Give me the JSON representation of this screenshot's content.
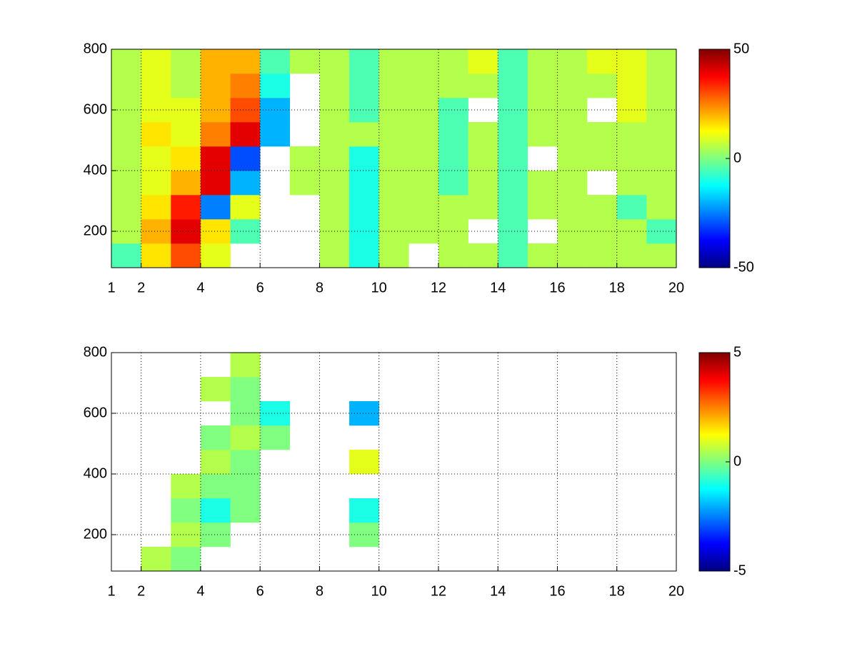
{
  "chart_data": [
    {
      "type": "heatmap",
      "colormap": "jet",
      "grid": true,
      "x_edges": [
        1,
        2,
        3,
        4,
        5,
        6,
        7,
        8,
        9,
        10,
        11,
        12,
        13,
        14,
        15,
        16,
        17,
        18,
        19,
        20
      ],
      "y_edges": [
        80,
        160,
        240,
        320,
        400,
        480,
        560,
        640,
        720,
        800
      ],
      "z": [
        [
          -5,
          15,
          30,
          10,
          null,
          null,
          null,
          5,
          -10,
          5,
          null,
          5,
          5,
          -5,
          5,
          5,
          5,
          5,
          5
        ],
        [
          5,
          20,
          40,
          15,
          -5,
          null,
          null,
          5,
          -10,
          5,
          5,
          5,
          null,
          -5,
          null,
          5,
          5,
          5,
          -5
        ],
        [
          5,
          15,
          35,
          -25,
          10,
          null,
          null,
          5,
          -10,
          5,
          5,
          5,
          5,
          -5,
          5,
          5,
          5,
          -5,
          5
        ],
        [
          5,
          10,
          20,
          40,
          -20,
          null,
          5,
          5,
          -10,
          5,
          5,
          -5,
          5,
          -5,
          5,
          5,
          null,
          5,
          5
        ],
        [
          5,
          10,
          15,
          40,
          -30,
          null,
          5,
          5,
          -10,
          5,
          5,
          -5,
          5,
          -5,
          null,
          5,
          5,
          5,
          5
        ],
        [
          5,
          15,
          10,
          25,
          40,
          -20,
          null,
          5,
          5,
          5,
          5,
          -5,
          5,
          -5,
          5,
          5,
          5,
          5,
          5
        ],
        [
          5,
          10,
          10,
          20,
          30,
          -20,
          null,
          5,
          -5,
          5,
          5,
          -5,
          null,
          -5,
          5,
          5,
          null,
          10,
          5
        ],
        [
          5,
          10,
          5,
          20,
          25,
          -10,
          null,
          5,
          -5,
          5,
          5,
          5,
          5,
          -5,
          5,
          5,
          5,
          10,
          5
        ],
        [
          5,
          10,
          5,
          20,
          20,
          -5,
          5,
          5,
          -5,
          5,
          5,
          5,
          10,
          -5,
          5,
          5,
          10,
          10,
          5
        ]
      ],
      "xlim": [
        1,
        20
      ],
      "ylim": [
        80,
        800
      ],
      "xticks": [
        1,
        2,
        4,
        6,
        8,
        10,
        12,
        14,
        16,
        18,
        20
      ],
      "yticks": [
        200,
        400,
        600,
        800
      ],
      "clim": [
        -50,
        50
      ],
      "cticks": [
        -50,
        0,
        50
      ]
    },
    {
      "type": "heatmap",
      "colormap": "jet",
      "grid": true,
      "x_edges": [
        1,
        2,
        3,
        4,
        5,
        6,
        7,
        8,
        9,
        10,
        11,
        12,
        13,
        14,
        15,
        16,
        17,
        18,
        19,
        20
      ],
      "y_edges": [
        80,
        160,
        240,
        320,
        400,
        480,
        560,
        640,
        720,
        800
      ],
      "z": [
        [
          null,
          0.5,
          0,
          null,
          null,
          null,
          null,
          null,
          null,
          null,
          null,
          null,
          null,
          null,
          null,
          null,
          null,
          null,
          null
        ],
        [
          null,
          null,
          0.5,
          0,
          null,
          null,
          null,
          null,
          0,
          null,
          null,
          null,
          null,
          null,
          null,
          null,
          null,
          null,
          null
        ],
        [
          null,
          null,
          0,
          -1,
          0,
          null,
          null,
          null,
          -1,
          null,
          null,
          null,
          null,
          null,
          null,
          null,
          null,
          null,
          null
        ],
        [
          null,
          null,
          0.5,
          0,
          0,
          null,
          null,
          null,
          null,
          null,
          null,
          null,
          null,
          null,
          null,
          null,
          null,
          null,
          null
        ],
        [
          null,
          null,
          null,
          0.5,
          0,
          null,
          null,
          null,
          1,
          null,
          null,
          null,
          null,
          null,
          null,
          null,
          null,
          null,
          null
        ],
        [
          null,
          null,
          null,
          0,
          0.5,
          0,
          null,
          null,
          null,
          null,
          null,
          null,
          null,
          null,
          null,
          null,
          null,
          null,
          null
        ],
        [
          null,
          null,
          null,
          null,
          0,
          -1,
          null,
          null,
          -2,
          null,
          null,
          null,
          null,
          null,
          null,
          null,
          null,
          null,
          null
        ],
        [
          null,
          null,
          null,
          0.5,
          0,
          null,
          null,
          null,
          null,
          null,
          null,
          null,
          null,
          null,
          null,
          null,
          null,
          null,
          null
        ],
        [
          null,
          null,
          null,
          null,
          0.5,
          null,
          null,
          null,
          null,
          null,
          null,
          null,
          null,
          null,
          null,
          null,
          null,
          null,
          null
        ]
      ],
      "xlim": [
        1,
        20
      ],
      "ylim": [
        80,
        800
      ],
      "xticks": [
        1,
        2,
        4,
        6,
        8,
        10,
        12,
        14,
        16,
        18,
        20
      ],
      "yticks": [
        200,
        400,
        600,
        800
      ],
      "clim": [
        -5,
        5
      ],
      "cticks": [
        -5,
        0,
        5
      ]
    }
  ]
}
